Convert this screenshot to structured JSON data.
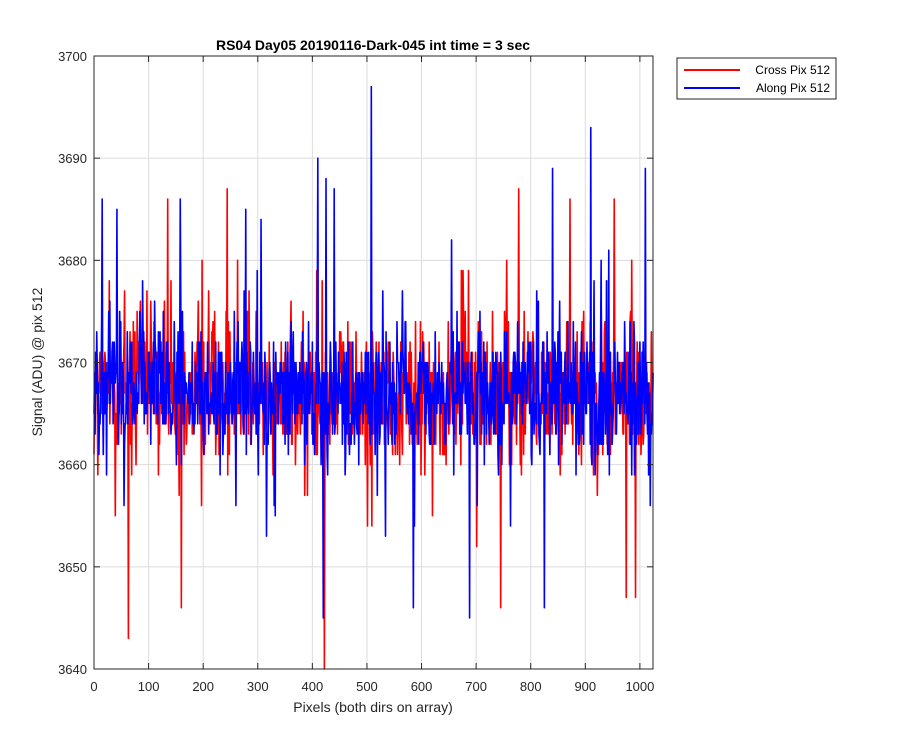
{
  "chart_data": {
    "type": "line",
    "title": "RS04 Day05 20190116-Dark-045 int time = 3 sec",
    "xlabel": "Pixels (both dirs on array)",
    "ylabel": "Signal (ADU) @ pix 512",
    "xlim": [
      0,
      1024
    ],
    "ylim": [
      3640,
      3700
    ],
    "xticks": [
      0,
      100,
      200,
      300,
      400,
      500,
      600,
      700,
      800,
      900,
      1000
    ],
    "yticks": [
      3640,
      3650,
      3660,
      3670,
      3680,
      3690,
      3700
    ],
    "grid": true,
    "legend_position": "outside top-right",
    "series": [
      {
        "name": "Cross Pix 512",
        "color": "#ff0000",
        "mean": 3667,
        "noise_range": [
          3655,
          3680
        ],
        "notable_points": [
          {
            "x": 63,
            "y": 3643
          },
          {
            "x": 135,
            "y": 3686
          },
          {
            "x": 160,
            "y": 3646
          },
          {
            "x": 244,
            "y": 3687
          },
          {
            "x": 422,
            "y": 3640
          },
          {
            "x": 745,
            "y": 3646
          },
          {
            "x": 778,
            "y": 3687
          },
          {
            "x": 872,
            "y": 3686
          },
          {
            "x": 953,
            "y": 3686
          },
          {
            "x": 975,
            "y": 3647
          },
          {
            "x": 992,
            "y": 3647
          }
        ]
      },
      {
        "name": "Along Pix 512",
        "color": "#0000ff",
        "mean": 3667,
        "noise_range": [
          3655,
          3680
        ],
        "notable_points": [
          {
            "x": 15,
            "y": 3686
          },
          {
            "x": 42,
            "y": 3685
          },
          {
            "x": 158,
            "y": 3686
          },
          {
            "x": 278,
            "y": 3685
          },
          {
            "x": 410,
            "y": 3690
          },
          {
            "x": 420,
            "y": 3645
          },
          {
            "x": 425,
            "y": 3688
          },
          {
            "x": 440,
            "y": 3687
          },
          {
            "x": 508,
            "y": 3697
          },
          {
            "x": 585,
            "y": 3646
          },
          {
            "x": 688,
            "y": 3645
          },
          {
            "x": 825,
            "y": 3646
          },
          {
            "x": 840,
            "y": 3689
          },
          {
            "x": 910,
            "y": 3693
          },
          {
            "x": 1010,
            "y": 3689
          }
        ]
      }
    ]
  }
}
